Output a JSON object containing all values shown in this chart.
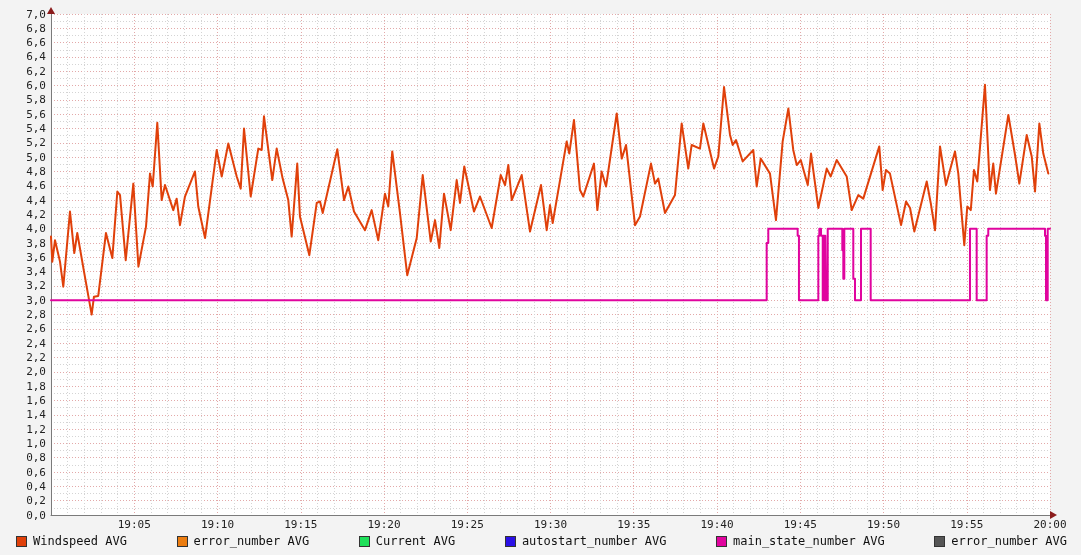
{
  "chart_data": {
    "type": "line",
    "xlim": [
      19,
      20
    ],
    "ylim": [
      0,
      7
    ],
    "grid": true,
    "legend": "bottom",
    "xticks": [
      {
        "value": 19.0833,
        "label": "19:05"
      },
      {
        "value": 19.1667,
        "label": "19:10"
      },
      {
        "value": 19.25,
        "label": "19:15"
      },
      {
        "value": 19.3333,
        "label": "19:20"
      },
      {
        "value": 19.4167,
        "label": "19:25"
      },
      {
        "value": 19.5,
        "label": "19:30"
      },
      {
        "value": 19.5833,
        "label": "19:35"
      },
      {
        "value": 19.6667,
        "label": "19:40"
      },
      {
        "value": 19.75,
        "label": "19:45"
      },
      {
        "value": 19.8333,
        "label": "19:50"
      },
      {
        "value": 19.9167,
        "label": "19:55"
      },
      {
        "value": 20,
        "label": "20:00"
      }
    ],
    "yticks": [
      {
        "value": 0,
        "label": "0,0"
      },
      {
        "value": 0.2,
        "label": "0,2"
      },
      {
        "value": 0.4,
        "label": "0,4"
      },
      {
        "value": 0.6,
        "label": "0,6"
      },
      {
        "value": 0.8,
        "label": "0,8"
      },
      {
        "value": 1,
        "label": "1,0"
      },
      {
        "value": 1.2,
        "label": "1,2"
      },
      {
        "value": 1.4,
        "label": "1,4"
      },
      {
        "value": 1.6,
        "label": "1,6"
      },
      {
        "value": 1.8,
        "label": "1,8"
      },
      {
        "value": 2,
        "label": "2,0"
      },
      {
        "value": 2.2,
        "label": "2,2"
      },
      {
        "value": 2.4,
        "label": "2,4"
      },
      {
        "value": 2.6,
        "label": "2,6"
      },
      {
        "value": 2.8,
        "label": "2,8"
      },
      {
        "value": 3,
        "label": "3,0"
      },
      {
        "value": 3.2,
        "label": "3,2"
      },
      {
        "value": 3.4,
        "label": "3,4"
      },
      {
        "value": 3.6,
        "label": "3,6"
      },
      {
        "value": 3.8,
        "label": "3,8"
      },
      {
        "value": 4,
        "label": "4,0"
      },
      {
        "value": 4.2,
        "label": "4,2"
      },
      {
        "value": 4.4,
        "label": "4,4"
      },
      {
        "value": 4.6,
        "label": "4,6"
      },
      {
        "value": 4.8,
        "label": "4,8"
      },
      {
        "value": 5,
        "label": "5,0"
      },
      {
        "value": 5.2,
        "label": "5,2"
      },
      {
        "value": 5.4,
        "label": "5,4"
      },
      {
        "value": 5.6,
        "label": "5,6"
      },
      {
        "value": 5.8,
        "label": "5,8"
      },
      {
        "value": 6,
        "label": "6,0"
      },
      {
        "value": 6.2,
        "label": "6,2"
      },
      {
        "value": 6.4,
        "label": "6,4"
      },
      {
        "value": 6.6,
        "label": "6,6"
      },
      {
        "value": 6.8,
        "label": "6,8"
      },
      {
        "value": 7,
        "label": "7,0"
      }
    ],
    "series": [
      {
        "name": "Windspeed AVG",
        "color": "#e0400a",
        "x": [
          19,
          19.0013,
          19.004,
          19.009,
          19.0123,
          19.019,
          19.0233,
          19.0263,
          19.0333,
          19.0407,
          19.043,
          19.0473,
          19.055,
          19.0614,
          19.0664,
          19.0691,
          19.0748,
          19.0824,
          19.0875,
          19.0951,
          19.0991,
          19.1018,
          19.1064,
          19.1108,
          19.1141,
          19.1224,
          19.1258,
          19.1291,
          19.1341,
          19.1441,
          19.1474,
          19.1542,
          19.1659,
          19.1709,
          19.1775,
          19.1859,
          19.1899,
          19.1932,
          19.1999,
          19.2075,
          19.2109,
          19.2132,
          19.2215,
          19.2259,
          19.2319,
          19.2375,
          19.2409,
          19.2465,
          19.2492,
          19.2586,
          19.266,
          19.2693,
          19.272,
          19.2866,
          19.2933,
          19.2976,
          19.3033,
          19.3143,
          19.321,
          19.3276,
          19.3343,
          19.3376,
          19.3416,
          19.3493,
          19.3566,
          19.3661,
          19.3721,
          19.3801,
          19.3844,
          19.3887,
          19.3934,
          19.4001,
          19.4061,
          19.4094,
          19.4137,
          19.4234,
          19.4294,
          19.4411,
          19.4502,
          19.4545,
          19.4578,
          19.4612,
          19.4712,
          19.4795,
          19.4905,
          19.4962,
          19.4995,
          19.5022,
          19.5162,
          19.5188,
          19.5235,
          19.5295,
          19.5328,
          19.5435,
          19.5469,
          19.5512,
          19.5556,
          19.5663,
          19.5713,
          19.5756,
          19.5846,
          19.5896,
          19.6006,
          19.6046,
          19.6079,
          19.6146,
          19.6246,
          19.6313,
          19.6379,
          19.6413,
          19.6496,
          19.653,
          19.6637,
          19.668,
          19.6737,
          19.6797,
          19.6824,
          19.6857,
          19.6924,
          19.703,
          19.7064,
          19.7104,
          19.7197,
          19.7257,
          19.7324,
          19.7381,
          19.743,
          19.7465,
          19.7505,
          19.7575,
          19.7608,
          19.7681,
          19.7765,
          19.7805,
          19.7865,
          19.7965,
          19.8015,
          19.8081,
          19.8131,
          19.8291,
          19.8325,
          19.8358,
          19.8398,
          19.8509,
          19.8559,
          19.8599,
          19.8642,
          19.8766,
          19.8806,
          19.8849,
          19.8899,
          19.8959,
          19.9049,
          19.9082,
          19.9142,
          19.9172,
          19.9207,
          19.9239,
          19.9272,
          19.9349,
          19.9399,
          19.9432,
          19.9459,
          19.9583,
          19.965,
          19.9693,
          19.9767,
          19.9817,
          19.985,
          19.9893,
          19.9933,
          19.9983
        ],
        "values": [
          3.89,
          3.54,
          3.84,
          3.54,
          3.19,
          4.24,
          3.66,
          3.94,
          3.38,
          2.8,
          3.05,
          3.06,
          3.94,
          3.59,
          4.52,
          4.47,
          3.56,
          4.63,
          3.47,
          4.03,
          4.77,
          4.59,
          5.48,
          4.4,
          4.61,
          4.26,
          4.42,
          4.05,
          4.45,
          4.8,
          4.31,
          3.87,
          5.1,
          4.73,
          5.19,
          4.73,
          4.56,
          5.4,
          4.45,
          5.12,
          5.1,
          5.57,
          4.68,
          5.12,
          4.7,
          4.4,
          3.89,
          4.91,
          4.17,
          3.63,
          4.36,
          4.38,
          4.22,
          5.11,
          4.4,
          4.59,
          4.24,
          3.98,
          4.26,
          3.84,
          4.49,
          4.31,
          5.08,
          4.22,
          3.35,
          3.87,
          4.75,
          3.82,
          4.12,
          3.73,
          4.49,
          3.98,
          4.68,
          4.36,
          4.87,
          4.24,
          4.45,
          4.01,
          4.75,
          4.61,
          4.89,
          4.4,
          4.75,
          3.96,
          4.61,
          3.98,
          4.33,
          4.08,
          5.22,
          5.05,
          5.52,
          4.54,
          4.45,
          4.91,
          4.26,
          4.8,
          4.59,
          5.61,
          4.98,
          5.17,
          4.05,
          4.17,
          4.91,
          4.63,
          4.7,
          4.22,
          4.47,
          5.47,
          4.84,
          5.17,
          5.12,
          5.47,
          4.84,
          5.01,
          5.98,
          5.31,
          5.17,
          5.24,
          4.94,
          5.1,
          4.59,
          4.98,
          4.77,
          4.12,
          5.22,
          5.68,
          5.1,
          4.89,
          4.96,
          4.61,
          5.05,
          4.29,
          4.84,
          4.73,
          4.96,
          4.73,
          4.26,
          4.47,
          4.42,
          5.15,
          4.54,
          4.82,
          4.77,
          4.05,
          4.38,
          4.29,
          3.96,
          4.66,
          4.36,
          3.98,
          5.15,
          4.61,
          5.08,
          4.77,
          3.77,
          4.31,
          4.26,
          4.82,
          4.66,
          6.01,
          4.54,
          4.91,
          4.49,
          5.59,
          5.03,
          4.63,
          5.31,
          5.01,
          4.52,
          5.47,
          5.05,
          4.77
        ]
      },
      {
        "name": "error_number AVG",
        "color": "#ec7d10"
      },
      {
        "name": "Current AVG",
        "color": "#1fe05a"
      },
      {
        "name": "autostart_number AVG",
        "color": "#2a10e6"
      },
      {
        "name": "main_state_number AVG",
        "color": "#e0049e",
        "type": "step",
        "x": [
          19,
          19.7164,
          19.718,
          19.7474,
          19.7487,
          19.7681,
          19.7691,
          19.7708,
          19.7725,
          19.7731,
          19.7741,
          19.7751,
          19.7758,
          19.7775,
          19.7921,
          19.7931,
          19.7941,
          19.8031,
          19.8048,
          19.8108,
          19.8205,
          19.9199,
          19.9266,
          19.9366,
          19.9382,
          19.995,
          19.996,
          19.9977,
          20
        ],
        "values": [
          3,
          3.8,
          4,
          3.9,
          3,
          3.9,
          4,
          3.9,
          3,
          3.9,
          3,
          3.9,
          3,
          4,
          3.7,
          3.3,
          4,
          3.3,
          3,
          4,
          3,
          4,
          3,
          3.9,
          4,
          3.9,
          3,
          4,
          4
        ]
      },
      {
        "name": "error_number AVG",
        "color": "#555555"
      }
    ]
  }
}
